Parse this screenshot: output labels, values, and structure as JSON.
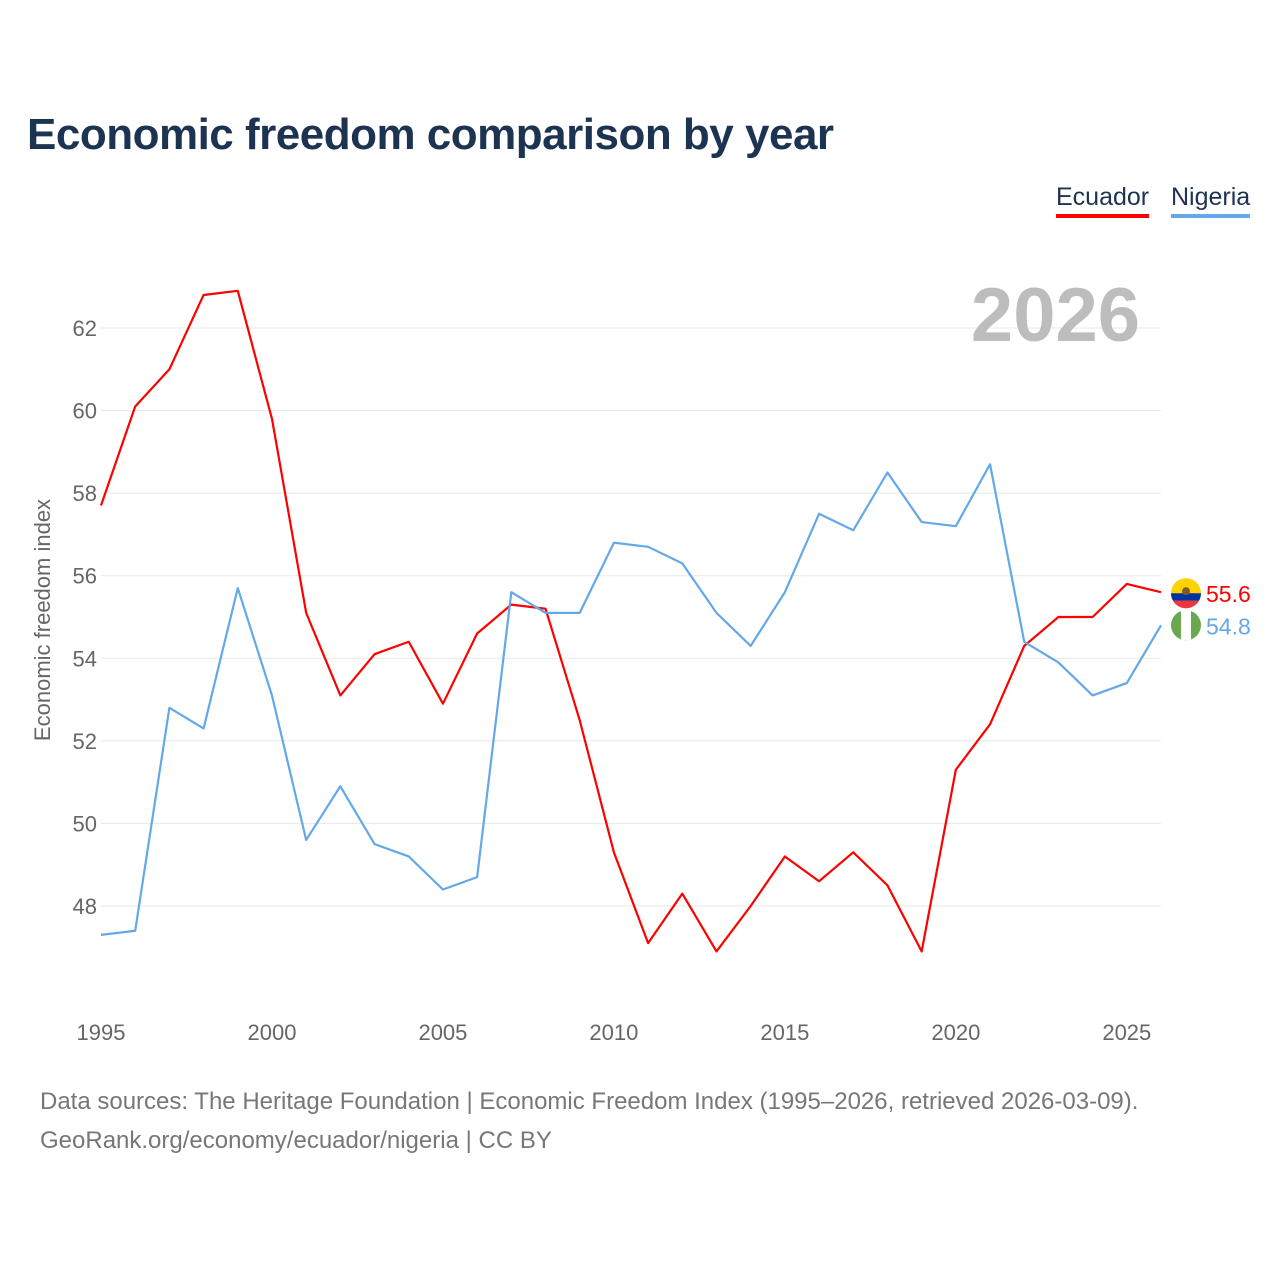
{
  "chart_data": {
    "type": "line",
    "title": "Economic freedom comparison by year",
    "xlabel": "",
    "ylabel": "Economic freedom index",
    "current_year_label": "2026",
    "x": [
      1995,
      1996,
      1997,
      1998,
      1999,
      2000,
      2001,
      2002,
      2003,
      2004,
      2005,
      2006,
      2007,
      2008,
      2009,
      2010,
      2011,
      2012,
      2013,
      2014,
      2015,
      2016,
      2017,
      2018,
      2019,
      2020,
      2021,
      2022,
      2023,
      2024,
      2025,
      2026
    ],
    "xticks": [
      1995,
      2000,
      2005,
      2010,
      2015,
      2020,
      2025
    ],
    "yticks": [
      48,
      50,
      52,
      54,
      56,
      58,
      60,
      62
    ],
    "xlim": [
      1995,
      2026
    ],
    "ylim": [
      45.8,
      63.4
    ],
    "grid": true,
    "legend_placement": "top-right",
    "series": [
      {
        "name": "Ecuador",
        "color": "#ff0000",
        "end_label": "55.6",
        "values": [
          57.7,
          60.1,
          61.0,
          62.8,
          62.9,
          59.8,
          55.1,
          53.1,
          54.1,
          54.4,
          52.9,
          54.6,
          55.3,
          55.2,
          52.5,
          49.3,
          47.1,
          48.3,
          46.9,
          48.0,
          49.2,
          48.6,
          49.3,
          48.5,
          46.9,
          51.3,
          52.4,
          54.3,
          55.0,
          55.0,
          55.8,
          55.6
        ]
      },
      {
        "name": "Nigeria",
        "color": "#64a8e8",
        "end_label": "54.8",
        "values": [
          47.3,
          47.4,
          52.8,
          52.3,
          55.7,
          53.1,
          49.6,
          50.9,
          49.5,
          49.2,
          48.4,
          48.7,
          55.6,
          55.1,
          55.1,
          56.8,
          56.7,
          56.3,
          55.1,
          54.3,
          55.6,
          57.5,
          57.1,
          58.5,
          57.3,
          57.2,
          58.7,
          54.4,
          53.9,
          53.1,
          53.4,
          54.8
        ]
      }
    ]
  },
  "footer": {
    "line1": "Data sources: The Heritage Foundation | Economic Freedom Index (1995–2026, retrieved 2026-03-09).",
    "line2": "GeoRank.org/economy/ecuador/nigeria | CC BY"
  }
}
